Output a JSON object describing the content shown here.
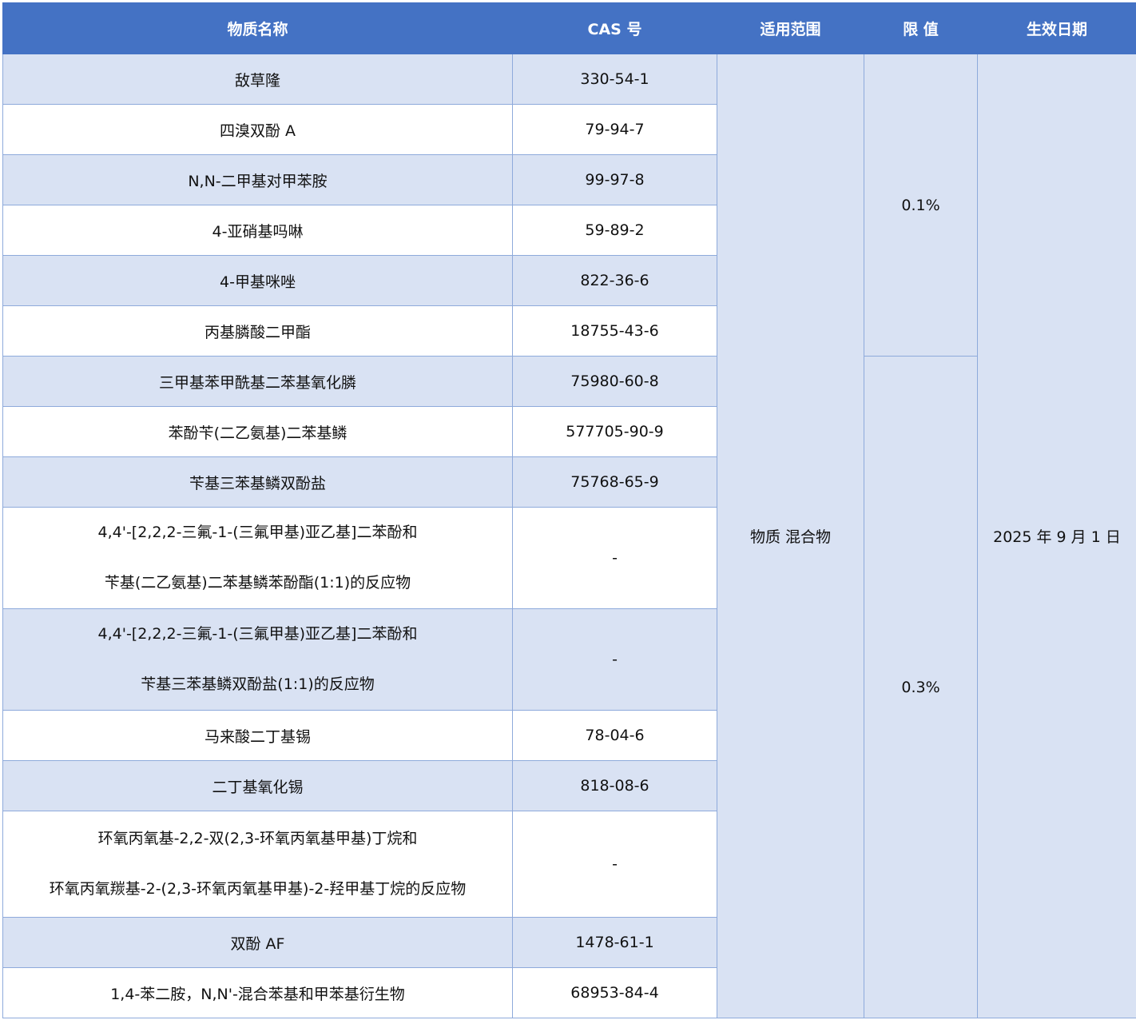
{
  "header": {
    "name": "物质名称",
    "cas": "CAS 号",
    "scope": "适用范围",
    "limit": "限 值",
    "date": "生效日期"
  },
  "scope": "物质 混合物",
  "limits": [
    "0.1%",
    "0.3%"
  ],
  "date": "2025 年 9 月 1 日",
  "rows": [
    {
      "name": [
        "敌草隆"
      ],
      "cas": "330-54-1"
    },
    {
      "name": [
        "四溴双酚 A"
      ],
      "cas": "79-94-7"
    },
    {
      "name": [
        "N,N-二甲基对甲苯胺"
      ],
      "cas": "99-97-8"
    },
    {
      "name": [
        "4-亚硝基吗啉"
      ],
      "cas": "59-89-2"
    },
    {
      "name": [
        "4-甲基咪唑"
      ],
      "cas": "822-36-6"
    },
    {
      "name": [
        "丙基膦酸二甲酯"
      ],
      "cas": "18755-43-6"
    },
    {
      "name": [
        "三甲基苯甲酰基二苯基氧化膦"
      ],
      "cas": "75980-60-8"
    },
    {
      "name": [
        "苯酚苄(二乙氨基)二苯基鳞"
      ],
      "cas": "577705-90-9"
    },
    {
      "name": [
        "苄基三苯基鳞双酚盐"
      ],
      "cas": "75768-65-9"
    },
    {
      "name": [
        "4,4'-[2,2,2-三氟-1-(三氟甲基)亚乙基]二苯酚和",
        "苄基(二乙氨基)二苯基鳞苯酚酯(1:1)的反应物"
      ],
      "cas": "-"
    },
    {
      "name": [
        "4,4'-[2,2,2-三氟-1-(三氟甲基)亚乙基]二苯酚和",
        "苄基三苯基鳞双酚盐(1:1)的反应物"
      ],
      "cas": "-"
    },
    {
      "name": [
        "马来酸二丁基锡"
      ],
      "cas": "78-04-6"
    },
    {
      "name": [
        "二丁基氧化锡"
      ],
      "cas": "818-08-6"
    },
    {
      "name": [
        "环氧丙氧基-2,2-双(2,3-环氧丙氧基甲基)丁烷和",
        "环氧丙氧羰基-2-(2,3-环氧丙氧基甲基)-2-羟甲基丁烷的反应物"
      ],
      "cas": "-"
    },
    {
      "name": [
        "双酚 AF"
      ],
      "cas": "1478-61-1"
    },
    {
      "name": [
        "1,4-苯二胺，N,N'-混合苯基和甲苯基衍生物"
      ],
      "cas": "68953-84-4"
    }
  ]
}
